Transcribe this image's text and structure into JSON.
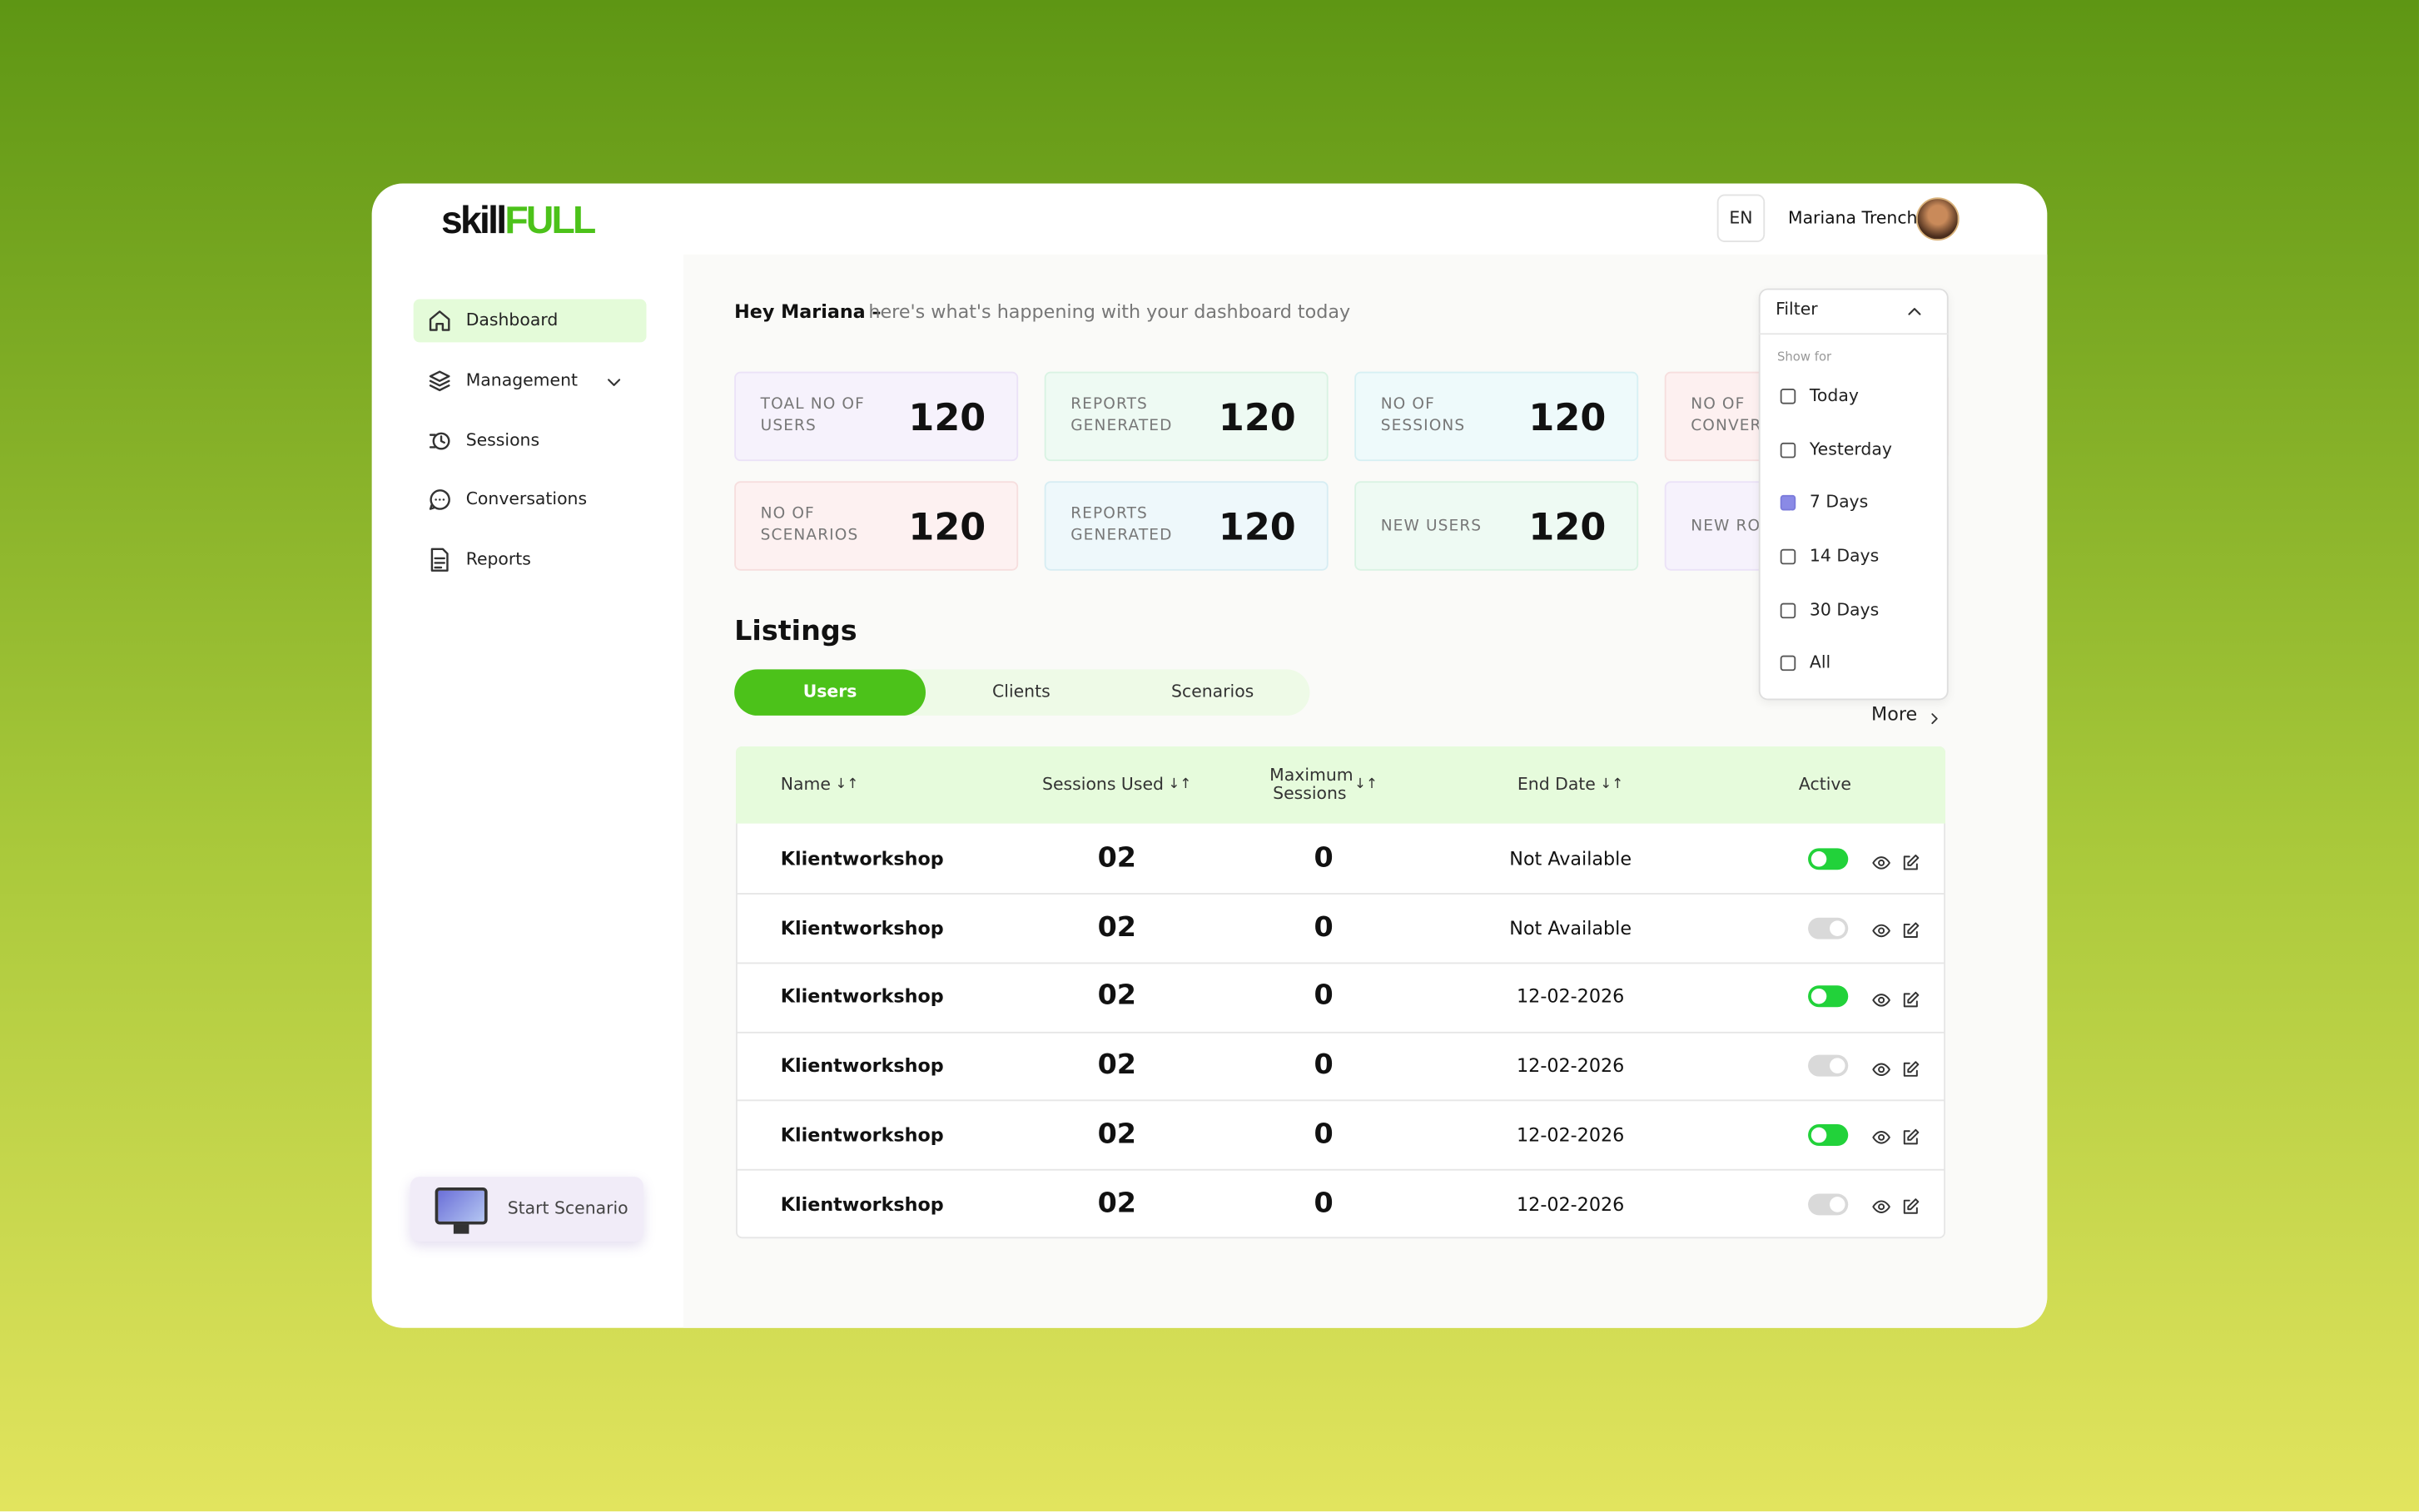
{
  "brand": {
    "part1": "skill",
    "part2": "FULL"
  },
  "header": {
    "language": "EN",
    "user_name": "Mariana Trench"
  },
  "nav": [
    "Dashboard",
    "Management",
    "Sessions",
    "Conversations",
    "Reports"
  ],
  "start_button": "Start Scenario",
  "greeting": {
    "bold": "Hey Mariana –",
    "text": "here's what's happening with your dashboard today"
  },
  "stats": [
    {
      "label": "TOAL NO OF USERS",
      "value": "120"
    },
    {
      "label": "REPORTS GENERATED",
      "value": "120"
    },
    {
      "label": "NO OF SESSIONS",
      "value": "120"
    },
    {
      "label": "NO OF CONVER"
    },
    {
      "label": "NO OF SCENARIOS",
      "value": "120"
    },
    {
      "label": "REPORTS GENERATED",
      "value": "120"
    },
    {
      "label": "NEW USERS",
      "value": "120"
    },
    {
      "label": "NEW ROLES"
    }
  ],
  "listings": {
    "title": "Listings",
    "tabs": [
      "Users",
      "Clients",
      "Scenarios"
    ],
    "more": "More"
  },
  "table": {
    "headers": [
      "Name",
      "Sessions Used",
      "Maximum Sessions",
      "End Date",
      "Active"
    ],
    "sort_icon": "↓↑",
    "rows": [
      {
        "name": "Klientworkshop",
        "sessions": "02",
        "max": "0",
        "end": "Not Available",
        "active": true
      },
      {
        "name": "Klientworkshop",
        "sessions": "02",
        "max": "0",
        "end": "Not Available",
        "active": false
      },
      {
        "name": "Klientworkshop",
        "sessions": "02",
        "max": "0",
        "end": "12-02-2026",
        "active": true
      },
      {
        "name": "Klientworkshop",
        "sessions": "02",
        "max": "0",
        "end": "12-02-2026",
        "active": false
      },
      {
        "name": "Klientworkshop",
        "sessions": "02",
        "max": "0",
        "end": "12-02-2026",
        "active": true
      },
      {
        "name": "Klientworkshop",
        "sessions": "02",
        "max": "0",
        "end": "12-02-2026",
        "active": false
      }
    ]
  },
  "filter": {
    "title": "Filter",
    "section": "Show for",
    "options": [
      "Today",
      "Yesterday",
      "7 Days",
      "14 Days",
      "30 Days",
      "All"
    ],
    "checked": [
      false,
      false,
      true,
      false,
      false,
      false
    ]
  }
}
